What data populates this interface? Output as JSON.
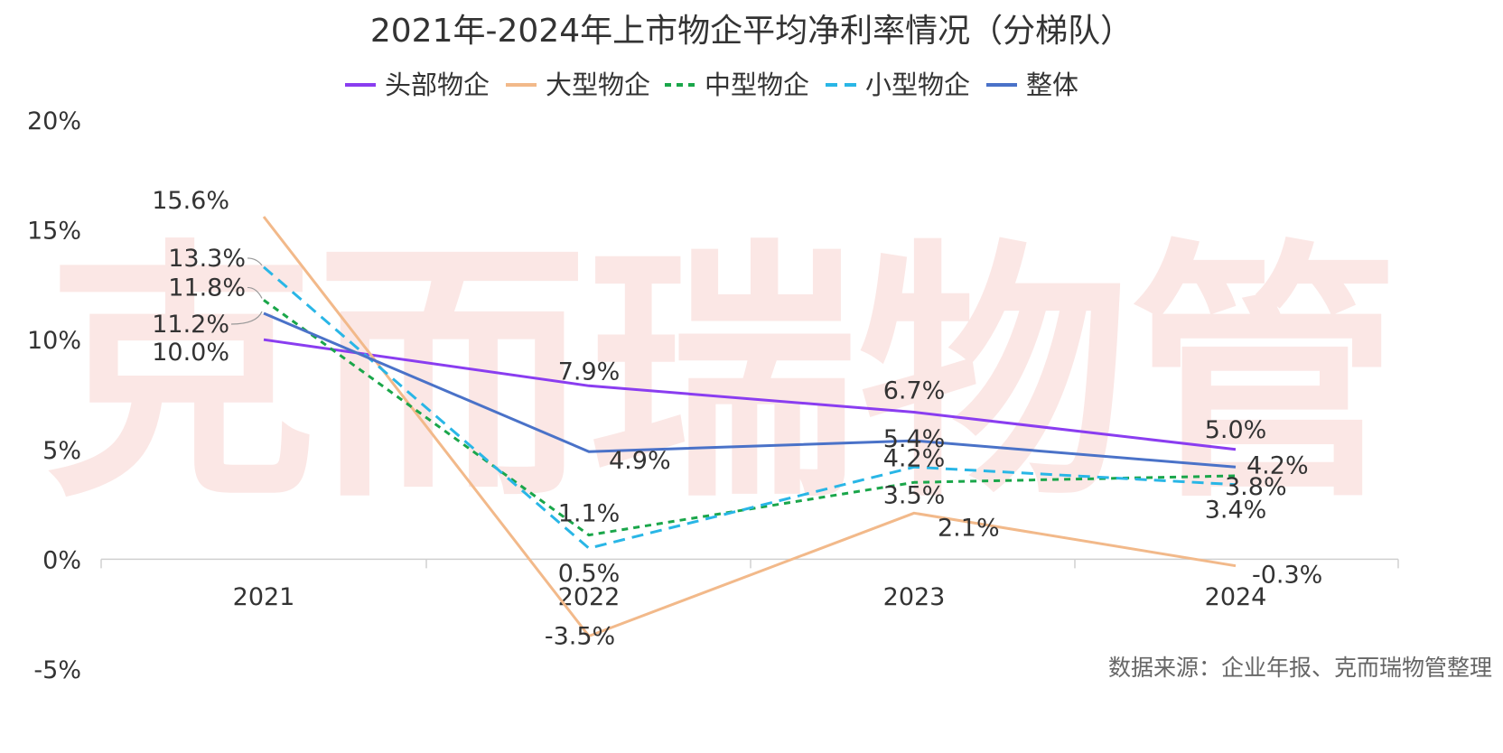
{
  "chart_data": {
    "type": "line",
    "title": "2021年-2024年上市物企平均净利率情况（分梯队）",
    "categories": [
      "2021",
      "2022",
      "2023",
      "2024"
    ],
    "y_ticks": [
      "20%",
      "15%",
      "10%",
      "5%",
      "0%",
      "-5%"
    ],
    "ylim": [
      -5,
      20
    ],
    "unit": "%",
    "legend_position": "top",
    "grid": false,
    "series": [
      {
        "name": "头部物企",
        "values": [
          10.0,
          7.9,
          6.7,
          5.0
        ],
        "labels": [
          "10.0%",
          "7.9%",
          "6.7%",
          "5.0%"
        ],
        "color": "#8a3df0",
        "dash": "solid"
      },
      {
        "name": "大型物企",
        "values": [
          15.6,
          -3.5,
          2.1,
          -0.3
        ],
        "labels": [
          "15.6%",
          "-3.5%",
          "2.1%",
          "-0.3%"
        ],
        "color": "#f2b98a",
        "dash": "solid"
      },
      {
        "name": "中型物企",
        "values": [
          11.8,
          1.1,
          3.5,
          3.8
        ],
        "labels": [
          "11.8%",
          "1.1%",
          "3.5%",
          "3.8%"
        ],
        "color": "#1aa64a",
        "dash": "dotted"
      },
      {
        "name": "小型物企",
        "values": [
          13.3,
          0.5,
          4.2,
          3.4
        ],
        "labels": [
          "13.3%",
          "0.5%",
          "4.2%",
          "3.4%"
        ],
        "color": "#29b6e6",
        "dash": "dashed"
      },
      {
        "name": "整体",
        "values": [
          11.2,
          4.9,
          5.4,
          4.2
        ],
        "labels": [
          "11.2%",
          "4.9%",
          "5.4%",
          "4.2%"
        ],
        "color": "#4a72c8",
        "dash": "solid"
      }
    ]
  },
  "watermark": "克而瑞物管",
  "source_note": "数据来源：企业年报、克而瑞物管整理"
}
